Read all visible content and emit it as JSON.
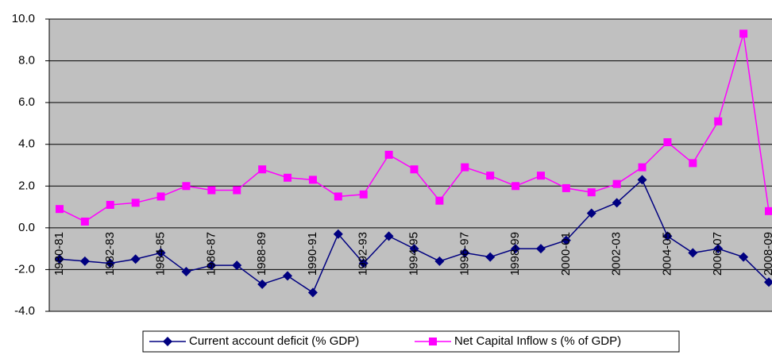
{
  "chart_data": {
    "type": "line",
    "categories": [
      "1980-81",
      null,
      "1982-83",
      null,
      "1984-85",
      null,
      "1986-87",
      null,
      "1988-89",
      null,
      "1990-91",
      null,
      "1992-93",
      null,
      "1994-95",
      null,
      "1996-97",
      null,
      "1998-99",
      null,
      "2000-01",
      null,
      "2002-03",
      null,
      "2004-05",
      null,
      "2006-07",
      null,
      "2008-09"
    ],
    "series": [
      {
        "name": "Current account deficit (% GDP)",
        "color": "#000080",
        "marker": "diamond",
        "values": [
          -1.5,
          -1.6,
          -1.7,
          -1.5,
          -1.2,
          -2.1,
          -1.8,
          -1.8,
          -2.7,
          -2.3,
          -3.1,
          -0.3,
          -1.7,
          -0.4,
          -1.0,
          -1.6,
          -1.2,
          -1.4,
          -1.0,
          -1.0,
          -0.6,
          0.7,
          1.2,
          2.3,
          -0.4,
          -1.2,
          -1.0,
          -1.4,
          -2.6
        ]
      },
      {
        "name": "Net Capital Inflow s (% of GDP)",
        "color": "#ff00ff",
        "marker": "square",
        "values": [
          0.9,
          0.3,
          1.1,
          1.2,
          1.5,
          2.0,
          1.8,
          1.8,
          2.8,
          2.4,
          2.3,
          1.5,
          1.6,
          3.5,
          2.8,
          1.3,
          2.9,
          2.5,
          2.0,
          2.5,
          1.9,
          1.7,
          2.1,
          2.9,
          4.1,
          3.1,
          5.1,
          9.3,
          0.8
        ]
      }
    ],
    "ylim": [
      -4,
      10
    ],
    "yticks": [
      {
        "value": -4,
        "label": "-4.0"
      },
      {
        "value": -2,
        "label": "-2.0"
      },
      {
        "value": 0,
        "label": "0.0"
      },
      {
        "value": 2,
        "label": "2.0"
      },
      {
        "value": 4,
        "label": "4.0"
      },
      {
        "value": 6,
        "label": "6.0"
      },
      {
        "value": 8,
        "label": "8.0"
      },
      {
        "value": 10,
        "label": "10.0"
      }
    ],
    "grid": true,
    "legend": "bottom"
  }
}
